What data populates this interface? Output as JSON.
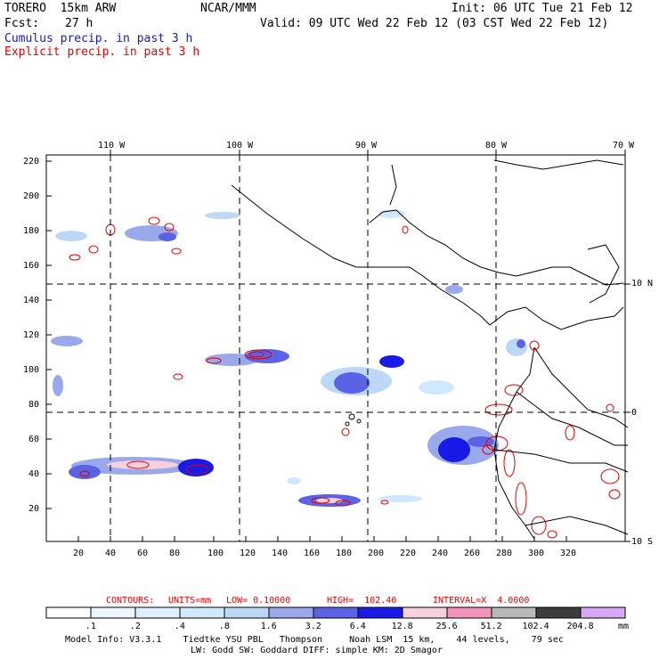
{
  "header": {
    "model": "TORERO  15km ARW",
    "org": "NCAR/MMM",
    "init": "Init: 06 UTC Tue 21 Feb 12",
    "fcst_label": "Fcst:",
    "fcst_value": "27 h",
    "valid": "Valid: 09 UTC Wed 22 Feb 12 (03 CST Wed 22 Feb 12)",
    "cumulus": "Cumulus precip. in past 3 h",
    "explicit": "Explicit precip. in past 3 h"
  },
  "map": {
    "top_lon_labels": [
      "110 W",
      "100 W",
      "90 W",
      "80 W",
      "70 W"
    ],
    "right_lat_labels": [
      "10 N",
      "0",
      "10 S"
    ],
    "y_ticks": [
      "220",
      "200",
      "180",
      "160",
      "140",
      "120",
      "100",
      "80",
      "60",
      "40",
      "20"
    ],
    "x_ticks": [
      "20",
      "40",
      "60",
      "80",
      "100",
      "120",
      "140",
      "160",
      "180",
      "200",
      "220",
      "240",
      "260",
      "280",
      "300",
      "320"
    ],
    "colors": {
      "coast": "#000000",
      "grid": "#000000",
      "cumulus": "#2a2ae0",
      "explicit": "#e00000"
    }
  },
  "contours": {
    "label": "CONTOURS:",
    "units": "UNITS=mm",
    "low": "LOW= 0.10000",
    "high": "HIGH=  102.40",
    "interval": "INTERVAL=X  4.0000"
  },
  "colorbar": {
    "labels": [
      ".1",
      ".2",
      ".4",
      ".8",
      "1.6",
      "3.2",
      "6.4",
      "12.8",
      "25.6",
      "51.2",
      "102.4",
      "204.8"
    ],
    "unit": "mm",
    "colors": [
      "#ffffff",
      "#eef6ff",
      "#e0efff",
      "#d0e8fb",
      "#bcd8f4",
      "#9aa8ec",
      "#5c62e4",
      "#1a1ae8",
      "#f6d0dc",
      "#f294bc",
      "#b8b8b8",
      "#3c3c3c",
      "#d8a8f4"
    ]
  },
  "footer": {
    "line1": "Model Info: V3.3.1    Tiedtke YSU PBL   Thompson     Noah LSM  15 km,    44 levels,    79 sec",
    "line2": "LW: Godd SW: Goddard DIFF: simple KM: 2D Smagor"
  }
}
